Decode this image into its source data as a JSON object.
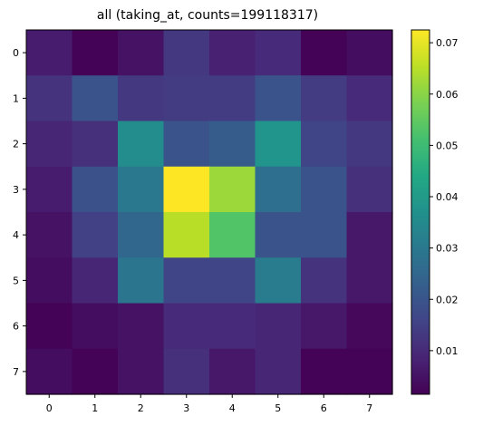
{
  "chart_data": {
    "type": "heatmap",
    "title": "all (taking_at, counts=199118317)",
    "xlabel": "",
    "ylabel": "",
    "x_ticks": [
      "0",
      "1",
      "2",
      "3",
      "4",
      "5",
      "6",
      "7"
    ],
    "y_ticks": [
      "0",
      "1",
      "2",
      "3",
      "4",
      "5",
      "6",
      "7"
    ],
    "colormap": "viridis",
    "vmin": 0.0015,
    "vmax": 0.0725,
    "colorbar_ticks": [
      0.01,
      0.02,
      0.03,
      0.04,
      0.05,
      0.06,
      0.07
    ],
    "colorbar_tick_labels": [
      "0.01",
      "0.02",
      "0.03",
      "0.04",
      "0.05",
      "0.06",
      "0.07"
    ],
    "values": [
      [
        0.007,
        0.002,
        0.005,
        0.013,
        0.008,
        0.01,
        0.002,
        0.004
      ],
      [
        0.012,
        0.02,
        0.013,
        0.014,
        0.014,
        0.02,
        0.014,
        0.01
      ],
      [
        0.009,
        0.011,
        0.036,
        0.02,
        0.022,
        0.038,
        0.016,
        0.013
      ],
      [
        0.007,
        0.019,
        0.03,
        0.0725,
        0.062,
        0.027,
        0.02,
        0.011
      ],
      [
        0.005,
        0.015,
        0.025,
        0.065,
        0.053,
        0.02,
        0.02,
        0.006
      ],
      [
        0.004,
        0.009,
        0.029,
        0.016,
        0.016,
        0.031,
        0.012,
        0.006
      ],
      [
        0.002,
        0.004,
        0.005,
        0.01,
        0.01,
        0.009,
        0.006,
        0.003
      ],
      [
        0.004,
        0.002,
        0.005,
        0.011,
        0.006,
        0.009,
        0.002,
        0.002
      ]
    ]
  }
}
